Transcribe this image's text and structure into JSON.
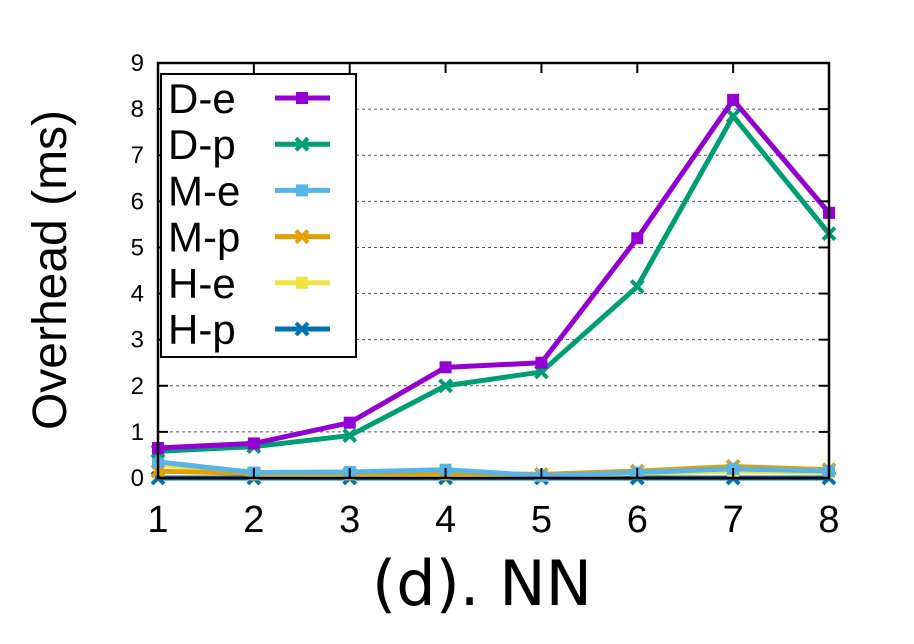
{
  "chart_data": {
    "type": "line",
    "title": "",
    "caption": "(d). NN",
    "xlabel": "",
    "ylabel": "Overhead (ms)",
    "x": [
      1,
      2,
      3,
      4,
      5,
      6,
      7,
      8
    ],
    "xlim": [
      1,
      8
    ],
    "ylim": [
      0,
      9
    ],
    "yticks": [
      0,
      1,
      2,
      3,
      4,
      5,
      6,
      7,
      8,
      9
    ],
    "grid": "horizontal dashed",
    "legend_position": "top-left",
    "series": [
      {
        "name": "D-e",
        "color": "#9400D3",
        "marker": "square",
        "values": [
          0.65,
          0.75,
          1.2,
          2.4,
          2.5,
          5.2,
          8.2,
          5.75
        ]
      },
      {
        "name": "D-p",
        "color": "#009E73",
        "marker": "cross",
        "values": [
          0.58,
          0.68,
          0.92,
          2.0,
          2.3,
          4.15,
          7.85,
          5.3
        ]
      },
      {
        "name": "M-e",
        "color": "#56B4E9",
        "marker": "square",
        "values": [
          0.35,
          0.12,
          0.13,
          0.18,
          0.05,
          0.12,
          0.2,
          0.15
        ]
      },
      {
        "name": "M-p",
        "color": "#E69F00",
        "marker": "cross",
        "values": [
          0.15,
          0.1,
          0.1,
          0.1,
          0.08,
          0.15,
          0.25,
          0.18
        ]
      },
      {
        "name": "H-e",
        "color": "#F0E442",
        "marker": "square",
        "values": [
          0.3,
          0.08,
          0.08,
          0.08,
          0.05,
          0.1,
          0.15,
          0.12
        ]
      },
      {
        "name": "H-p",
        "color": "#0072B2",
        "marker": "cross",
        "values": [
          0.0,
          0.0,
          0.0,
          0.0,
          0.0,
          0.0,
          0.0,
          0.0
        ]
      }
    ]
  }
}
